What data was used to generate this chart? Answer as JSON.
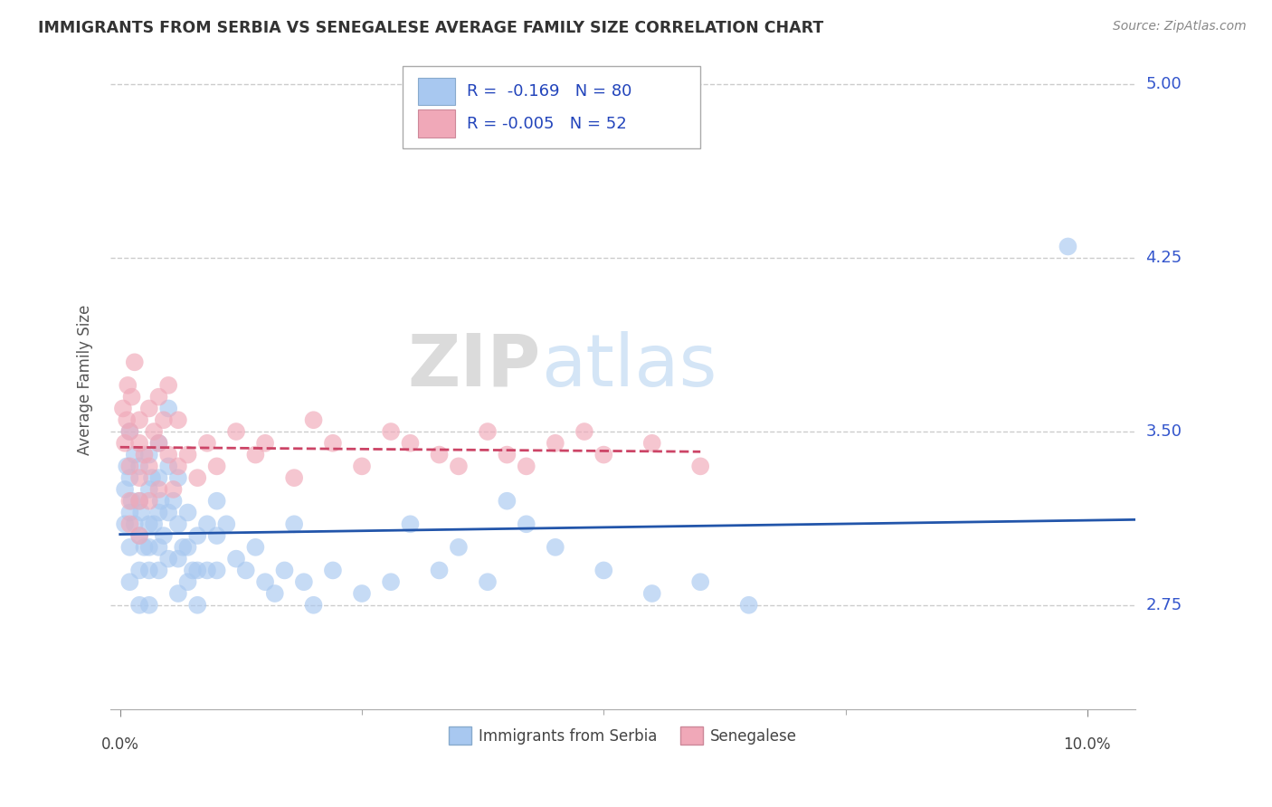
{
  "title": "IMMIGRANTS FROM SERBIA VS SENEGALESE AVERAGE FAMILY SIZE CORRELATION CHART",
  "source": "Source: ZipAtlas.com",
  "ylabel": "Average Family Size",
  "ymin": 2.3,
  "ymax": 5.15,
  "xmin": -0.001,
  "xmax": 0.105,
  "yticks": [
    2.75,
    3.5,
    4.25,
    5.0
  ],
  "grid_color": "#cccccc",
  "background_color": "#ffffff",
  "watermark_zip": "ZIP",
  "watermark_atlas": "atlas",
  "legend_R1": "-0.169",
  "legend_N1": "80",
  "legend_R2": "-0.005",
  "legend_N2": "52",
  "serbia_color": "#a8c8f0",
  "senegal_color": "#f0a8b8",
  "serbia_line_color": "#2255aa",
  "senegal_line_color": "#cc4466",
  "serbia_points_x": [
    0.0005,
    0.0005,
    0.0007,
    0.001,
    0.001,
    0.001,
    0.001,
    0.001,
    0.0012,
    0.0015,
    0.0015,
    0.002,
    0.002,
    0.002,
    0.002,
    0.002,
    0.0022,
    0.0025,
    0.003,
    0.003,
    0.003,
    0.003,
    0.003,
    0.003,
    0.0033,
    0.0035,
    0.004,
    0.004,
    0.004,
    0.004,
    0.004,
    0.0042,
    0.0045,
    0.005,
    0.005,
    0.005,
    0.005,
    0.0055,
    0.006,
    0.006,
    0.006,
    0.006,
    0.0065,
    0.007,
    0.007,
    0.007,
    0.0075,
    0.008,
    0.008,
    0.008,
    0.009,
    0.009,
    0.01,
    0.01,
    0.01,
    0.011,
    0.012,
    0.013,
    0.014,
    0.015,
    0.016,
    0.017,
    0.018,
    0.019,
    0.02,
    0.022,
    0.025,
    0.028,
    0.03,
    0.033,
    0.035,
    0.038,
    0.04,
    0.042,
    0.045,
    0.05,
    0.055,
    0.06,
    0.065,
    0.098
  ],
  "serbia_points_y": [
    3.25,
    3.1,
    3.35,
    3.5,
    3.3,
    3.15,
    3.0,
    2.85,
    3.2,
    3.4,
    3.1,
    3.35,
    3.2,
    3.05,
    2.9,
    2.75,
    3.15,
    3.0,
    3.4,
    3.25,
    3.1,
    3.0,
    2.9,
    2.75,
    3.3,
    3.1,
    3.45,
    3.3,
    3.15,
    3.0,
    2.9,
    3.2,
    3.05,
    3.6,
    3.35,
    3.15,
    2.95,
    3.2,
    3.3,
    3.1,
    2.95,
    2.8,
    3.0,
    3.15,
    3.0,
    2.85,
    2.9,
    3.05,
    2.9,
    2.75,
    3.1,
    2.9,
    3.2,
    3.05,
    2.9,
    3.1,
    2.95,
    2.9,
    3.0,
    2.85,
    2.8,
    2.9,
    3.1,
    2.85,
    2.75,
    2.9,
    2.8,
    2.85,
    3.1,
    2.9,
    3.0,
    2.85,
    3.2,
    3.1,
    3.0,
    2.9,
    2.8,
    2.85,
    2.75,
    4.3
  ],
  "senegal_points_x": [
    0.0003,
    0.0005,
    0.0007,
    0.0008,
    0.001,
    0.001,
    0.001,
    0.001,
    0.0012,
    0.0015,
    0.002,
    0.002,
    0.002,
    0.002,
    0.002,
    0.0025,
    0.003,
    0.003,
    0.003,
    0.0035,
    0.004,
    0.004,
    0.004,
    0.0045,
    0.005,
    0.005,
    0.0055,
    0.006,
    0.006,
    0.007,
    0.008,
    0.009,
    0.01,
    0.012,
    0.014,
    0.015,
    0.018,
    0.02,
    0.022,
    0.025,
    0.028,
    0.03,
    0.033,
    0.035,
    0.038,
    0.04,
    0.042,
    0.045,
    0.048,
    0.05,
    0.055,
    0.06
  ],
  "senegal_points_y": [
    3.6,
    3.45,
    3.55,
    3.7,
    3.5,
    3.35,
    3.2,
    3.1,
    3.65,
    3.8,
    3.55,
    3.45,
    3.3,
    3.2,
    3.05,
    3.4,
    3.6,
    3.35,
    3.2,
    3.5,
    3.65,
    3.45,
    3.25,
    3.55,
    3.7,
    3.4,
    3.25,
    3.55,
    3.35,
    3.4,
    3.3,
    3.45,
    3.35,
    3.5,
    3.4,
    3.45,
    3.3,
    3.55,
    3.45,
    3.35,
    3.5,
    3.45,
    3.4,
    3.35,
    3.5,
    3.4,
    3.35,
    3.45,
    3.5,
    3.4,
    3.45,
    3.35
  ]
}
